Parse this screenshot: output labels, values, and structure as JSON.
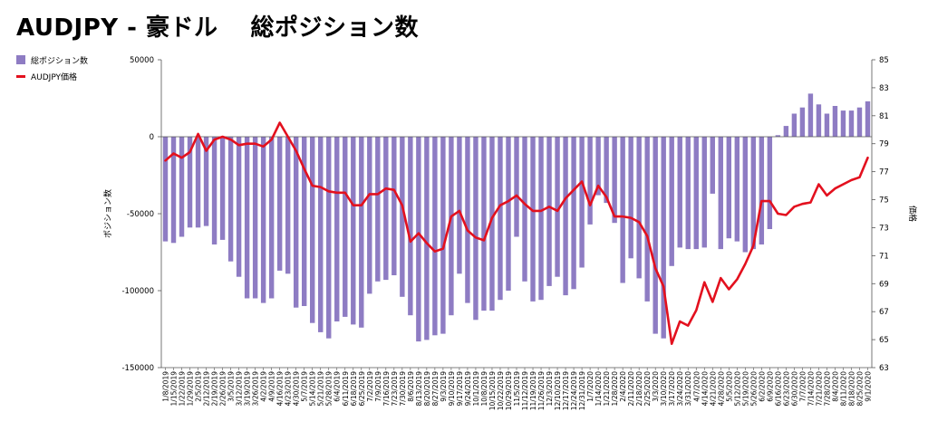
{
  "title": "AUDJPY - 豪ドル　 総ポジション数",
  "colors": {
    "bar": "#8e7cc3",
    "line": "#e3101e",
    "axis": "#555555"
  },
  "chart_data": {
    "type": "bar",
    "title": "AUDJPY - 豪ドル　 総ポジション数",
    "ylabel": "ポジション数",
    "y2label": "価格",
    "ylim": [
      -150000,
      50000
    ],
    "y_ticks": [
      "50000",
      "0",
      "-50000",
      "-100000",
      "-150000"
    ],
    "y2lim": [
      63,
      85
    ],
    "y2_ticks": [
      "85",
      "83",
      "81",
      "79",
      "77",
      "75",
      "73",
      "71",
      "69",
      "67",
      "65",
      "63"
    ],
    "legend_position": "top-left",
    "categories": [
      "1/8/2019",
      "1/15/2019",
      "1/22/2019",
      "1/29/2019",
      "2/5/2019",
      "2/12/2019",
      "2/19/2019",
      "2/26/2019",
      "3/5/2019",
      "3/12/2019",
      "3/19/2019",
      "3/26/2019",
      "4/2/2019",
      "4/9/2019",
      "4/16/2019",
      "4/23/2019",
      "4/30/2019",
      "5/7/2019",
      "5/14/2019",
      "5/21/2019",
      "5/28/2019",
      "6/4/2019",
      "6/11/2019",
      "6/18/2019",
      "6/25/2019",
      "7/2/2019",
      "7/9/2019",
      "7/16/2019",
      "7/23/2019",
      "7/30/2019",
      "8/6/2019",
      "8/13/2019",
      "8/20/2019",
      "8/27/2019",
      "9/3/2019",
      "9/10/2019",
      "9/17/2019",
      "9/24/2019",
      "10/1/2019",
      "10/8/2019",
      "10/15/2019",
      "10/22/2019",
      "10/29/2019",
      "11/5/2019",
      "11/12/2019",
      "11/19/2019",
      "11/26/2019",
      "12/3/2019",
      "12/10/2019",
      "12/17/2019",
      "12/24/2019",
      "12/31/2019",
      "1/7/2020",
      "1/14/2020",
      "1/21/2020",
      "1/28/2020",
      "2/4/2020",
      "2/11/2020",
      "2/18/2020",
      "2/25/2020",
      "3/3/2020",
      "3/10/2020",
      "3/17/2020",
      "3/24/2020",
      "3/31/2020",
      "4/7/2020",
      "4/14/2020",
      "4/21/2020",
      "4/28/2020",
      "5/5/2020",
      "5/12/2020",
      "5/19/2020",
      "5/26/2020",
      "6/2/2020",
      "6/9/2020",
      "6/16/2020",
      "6/23/2020",
      "6/30/2020",
      "7/7/2020",
      "7/14/2020",
      "7/21/2020",
      "7/28/2020",
      "8/4/2020",
      "8/11/2020",
      "8/18/2020",
      "8/25/2020",
      "9/1/2020"
    ],
    "x_tick_labels": [
      "1/8/2019",
      "1/15/2019",
      "1/22/2019",
      "1/29/2019",
      "2/5/2019",
      "2/12/2019",
      "2/19/2019",
      "2/26/2019",
      "3/5/2019",
      "3/12/2019",
      "3/19/2019",
      "3/26/2019",
      "4/2/2019",
      "4/9/2019",
      "4/16/2019",
      "4/23/2019",
      "4/30/2019",
      "5/7/2019",
      "5/14/2019",
      "5/21/2019",
      "5/28/2019",
      "6/4/2019",
      "6/11/2019",
      "6/18/2019",
      "6/25/2019",
      "7/2/2019",
      "7/9/2019",
      "7/16/2019",
      "7/23/2019",
      "7/30/2019",
      "8/6/2019",
      "8/13/2019",
      "8/20/2019",
      "8/27/2019",
      "9/3/2019",
      "9/10/2019",
      "9/17/2019",
      "9/24/2019",
      "10/1/2019",
      "10/8/2019",
      "10/15/2019",
      "10/22/2019",
      "10/29/2019",
      "11/5/2019",
      "11/12/2019",
      "11/19/2019",
      "11/26/2019",
      "12/3/2019",
      "12/10/2019",
      "12/17/2019",
      "12/24/2019",
      "12/31/2019",
      "1/7/2020",
      "1/14/2020",
      "1/21/2020",
      "1/28/2020",
      "2/4/2020",
      "2/11/2020",
      "2/18/2020",
      "2/25/2020",
      "3/3/2020",
      "3/10/2020",
      "3/17/2020",
      "3/24/2020",
      "3/31/2020",
      "4/7/2020",
      "4/14/2020",
      "4/21/2020",
      "4/28/2020",
      "5/5/2020",
      "5/12/2020",
      "5/19/2020",
      "5/26/2020",
      "6/2/2020",
      "6/9/2020",
      "6/16/2020",
      "6/23/2020",
      "6/30/2020",
      "7/7/2020",
      "7/14/2020",
      "7/21/2020",
      "7/28/2020",
      "8/4/2020",
      "8/11/2020",
      "8/18/2020",
      "8/25/2020",
      "9/1/2020"
    ],
    "series": [
      {
        "name": "総ポジション数",
        "type": "bar",
        "axis": "left",
        "values": [
          -68000,
          -69000,
          -65000,
          -59000,
          -59000,
          -58000,
          -70000,
          -67000,
          -81000,
          -91000,
          -105000,
          -105000,
          -108000,
          -105000,
          -87000,
          -89000,
          -111000,
          -110000,
          -121000,
          -127000,
          -131000,
          -120000,
          -117000,
          -122000,
          -124000,
          -102000,
          -94000,
          -93000,
          -90000,
          -104000,
          -116000,
          -133000,
          -132000,
          -129000,
          -128000,
          -116000,
          -89000,
          -108000,
          -119000,
          -113000,
          -113000,
          -106000,
          -100000,
          -65000,
          -94000,
          -107000,
          -106000,
          -97000,
          -91000,
          -103000,
          -99000,
          -85000,
          -57000,
          -38000,
          -43000,
          -56000,
          -95000,
          -79000,
          -92000,
          -107000,
          -128000,
          -131000,
          -84000,
          -72000,
          -73000,
          -73000,
          -72000,
          -37000,
          -73000,
          -66000,
          -68000,
          -75000,
          -73000,
          -70000,
          -60000,
          1000,
          7000,
          15000,
          19000,
          28000,
          21000,
          15000,
          20000,
          17000,
          17000,
          19000,
          23000
        ]
      },
      {
        "name": "AUDJPY価格",
        "type": "line",
        "axis": "right",
        "values": [
          77.8,
          78.3,
          78.0,
          78.4,
          79.7,
          78.5,
          79.3,
          79.5,
          79.3,
          78.9,
          79.0,
          79.0,
          78.8,
          79.3,
          80.5,
          79.5,
          78.5,
          77.2,
          76.0,
          75.9,
          75.6,
          75.5,
          75.5,
          74.6,
          74.6,
          75.4,
          75.4,
          75.8,
          75.7,
          74.6,
          72.0,
          72.6,
          71.9,
          71.3,
          71.5,
          73.8,
          74.2,
          72.8,
          72.3,
          72.1,
          73.7,
          74.6,
          74.9,
          75.3,
          74.7,
          74.2,
          74.2,
          74.5,
          74.2,
          75.1,
          75.7,
          76.3,
          74.6,
          76.0,
          75.2,
          73.8,
          73.8,
          73.7,
          73.4,
          72.4,
          70.1,
          68.8,
          64.7,
          66.3,
          66.0,
          67.1,
          69.1,
          67.7,
          69.4,
          68.6,
          69.3,
          70.4,
          71.7,
          74.9,
          74.9,
          74.0,
          73.9,
          74.5,
          74.7,
          74.8,
          76.1,
          75.3,
          75.8,
          76.1,
          76.4,
          76.6,
          78.0
        ]
      }
    ]
  }
}
